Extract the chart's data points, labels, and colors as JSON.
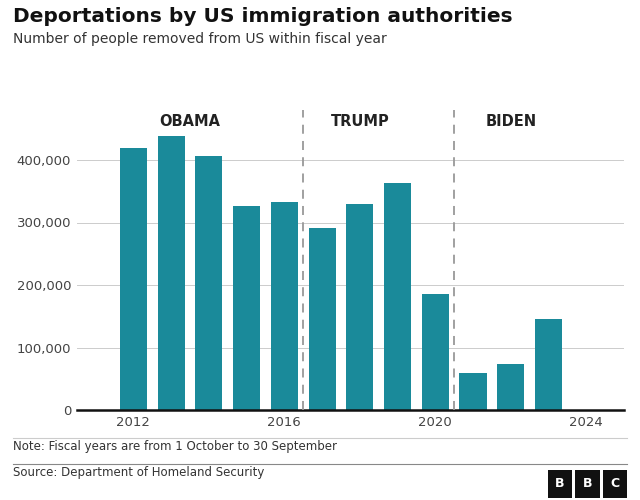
{
  "title": "Deportations by US immigration authorities",
  "subtitle": "Number of people removed from US within fiscal year",
  "years": [
    2012,
    2013,
    2014,
    2015,
    2016,
    2017,
    2018,
    2019,
    2020,
    2021,
    2022,
    2023
  ],
  "values": [
    419000,
    438000,
    407000,
    326000,
    333000,
    291000,
    330000,
    363000,
    186000,
    59000,
    73000,
    145000
  ],
  "bar_color": "#1a8a9a",
  "background_color": "#ffffff",
  "era_labels": [
    {
      "text": "OBAMA",
      "x": 2013.5
    },
    {
      "text": "TRUMP",
      "x": 2018.0
    },
    {
      "text": "BIDEN",
      "x": 2022.0
    }
  ],
  "dividers": [
    2016.5,
    2020.5
  ],
  "yticks": [
    0,
    100000,
    200000,
    300000,
    400000
  ],
  "ytick_labels": [
    "0",
    "100,000",
    "200,000",
    "300,000",
    "400,000"
  ],
  "xticks": [
    2012,
    2016,
    2020,
    2024
  ],
  "ylim": [
    0,
    480000
  ],
  "xlim": [
    2010.5,
    2025.0
  ],
  "note": "Note: Fiscal years are from 1 October to 30 September",
  "source": "Source: Department of Homeland Security",
  "bbc_letters": [
    "B",
    "B",
    "C"
  ]
}
